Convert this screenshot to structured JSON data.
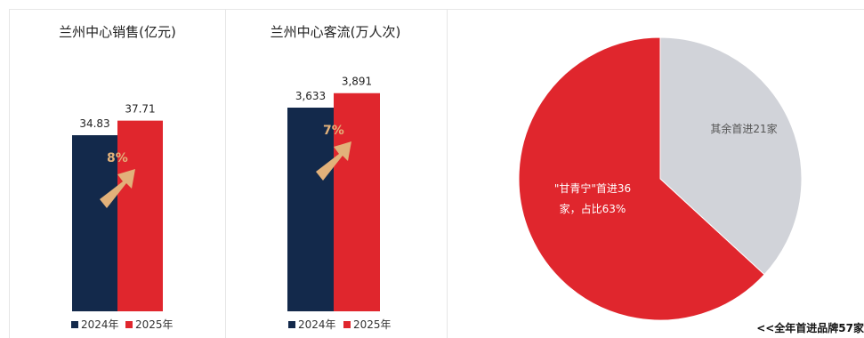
{
  "colors": {
    "dark": "#13294b",
    "red": "#e0262d",
    "grey": "#d1d3d9",
    "arrow": "#e2b17a"
  },
  "chart_data": [
    {
      "type": "bar",
      "title": "兰州中心销售(亿元)",
      "categories": [
        "2024年",
        "2025年"
      ],
      "values": [
        34.83,
        37.71
      ],
      "value_labels": [
        "34.83",
        "37.71"
      ],
      "growth_label": "8%",
      "legend": [
        "2024年",
        "2025年"
      ],
      "ylim": [
        0,
        40
      ]
    },
    {
      "type": "bar",
      "title": "兰州中心客流(万人次)",
      "categories": [
        "2024年",
        "2025年"
      ],
      "values": [
        3633,
        3891
      ],
      "value_labels": [
        "3,633",
        "3,891"
      ],
      "growth_label": "7%",
      "legend": [
        "2024年",
        "2025年"
      ],
      "ylim": [
        0,
        4100
      ]
    },
    {
      "type": "pie",
      "slices": [
        {
          "label_line1": "\"甘青宁\"首进36",
          "label_line2": "家，占比63%",
          "value": 36
        },
        {
          "label_line1": "其余首进21家",
          "label_line2": "",
          "value": 21
        }
      ],
      "footer": "<<全年首进品牌57家"
    }
  ]
}
